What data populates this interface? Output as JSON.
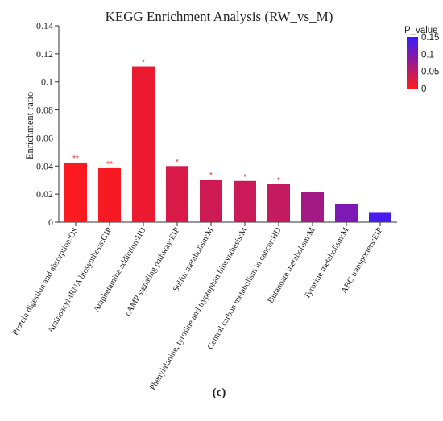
{
  "chart_data": {
    "type": "bar",
    "title": "KEGG Enrichment Analysis (RW_vs_M)",
    "ylabel": "Enrichment ratio",
    "xlabel": "",
    "ylim": [
      0,
      0.14
    ],
    "yticks": [
      "0",
      "0.02",
      "0.04",
      "0.06",
      "0.08",
      "0.1",
      "0.12",
      "0.14"
    ],
    "categories": [
      "Protein digestion and absorption:OS",
      "Aminoacyl-tRNA biosynthesis:GIP",
      "Amphetamine addiction:HD",
      "cAMP signaling pathway:EIP",
      "Sulfur metabolism:M",
      "Phenylalanine, tyrosine and tryptophan biosynthesis:M",
      "Central carbon metabolism in cancer:HD",
      "Butanoate metabolism:M",
      "Tyrosine metabolism:M",
      "ABC transporters:EIP"
    ],
    "values": [
      0.0425,
      0.0385,
      0.111,
      0.04,
      0.0303,
      0.0294,
      0.027,
      0.0213,
      0.013,
      0.0072
    ],
    "p_values": [
      0.003,
      0.006,
      0.015,
      0.03,
      0.038,
      0.04,
      0.045,
      0.07,
      0.1,
      0.14
    ],
    "significance": [
      "**",
      "**",
      "*",
      "*",
      "*",
      "*",
      "*",
      "",
      "",
      ""
    ],
    "legend": {
      "title": "P_value",
      "ticks": [
        "0.15",
        "0.1",
        "0.05",
        "0"
      ],
      "range": [
        0,
        0.15
      ],
      "placement": "top-right",
      "color_low": "#ff1a1a",
      "color_high": "#3a1aff"
    },
    "grid": false
  },
  "panel_label": "(c)"
}
